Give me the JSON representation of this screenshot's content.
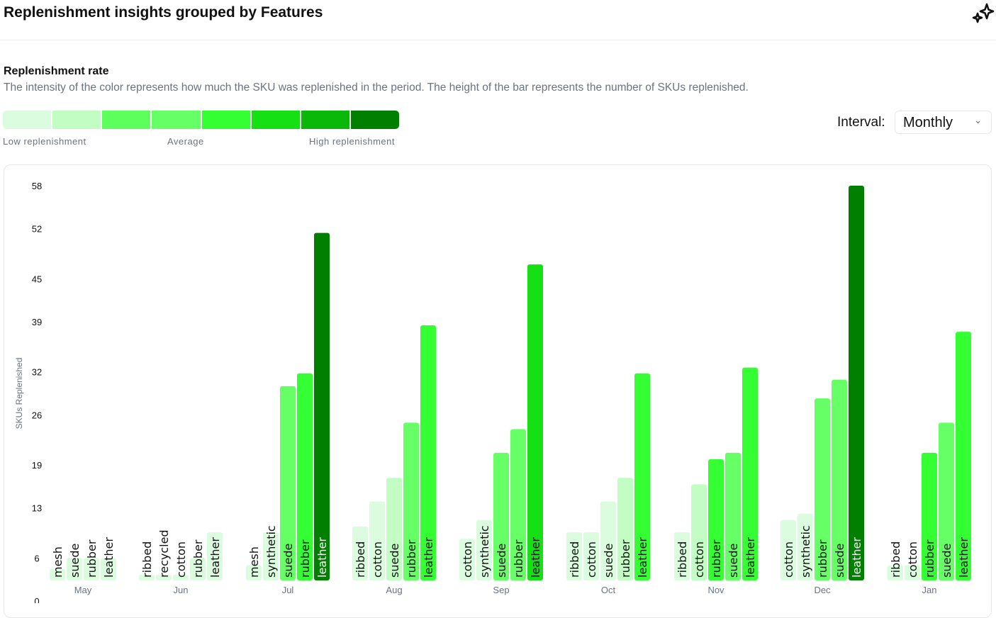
{
  "header": {
    "title": "Replenishment insights grouped by Features",
    "icon": "sparkles-icon"
  },
  "section": {
    "title": "Replenishment rate",
    "description": "The intensity of the color represents how much the SKU was replenished in the period. The height of the bar represents the number of SKUs replenished."
  },
  "legend": {
    "colors": [
      "#dcfcdf",
      "#c2fdc4",
      "#5cff5c",
      "#66ff66",
      "#33ff33",
      "#14e014",
      "#0ab80a",
      "#007f00"
    ],
    "low": "Low replenishment",
    "avg": "Average",
    "high": "High replenishment"
  },
  "interval": {
    "label": "Interval:",
    "value": "Monthly"
  },
  "chart_data": {
    "type": "bar",
    "ylabel": "SKUs Replenished",
    "ylim": [
      0,
      58
    ],
    "yticks": [
      0,
      6,
      13,
      19,
      26,
      32,
      39,
      45,
      52,
      58
    ],
    "groups": [
      {
        "month": "May",
        "bars": [
          {
            "f": "mesh",
            "v": 4.5,
            "c": 0
          },
          {
            "f": "suede",
            "v": 6,
            "c": 0
          },
          {
            "f": "rubber",
            "v": 6,
            "c": 0
          },
          {
            "f": "leather",
            "v": 6,
            "c": 0
          }
        ]
      },
      {
        "month": "Jun",
        "bars": [
          {
            "f": "ribbed",
            "v": 3.7,
            "c": 0
          },
          {
            "f": "recycled",
            "v": 3.7,
            "c": 0
          },
          {
            "f": "cotton",
            "v": 3.7,
            "c": 0
          },
          {
            "f": "rubber",
            "v": 6,
            "c": 0
          },
          {
            "f": "leather",
            "v": 9.6,
            "c": 0
          }
        ]
      },
      {
        "month": "Jul",
        "bars": [
          {
            "f": "mesh",
            "v": 5,
            "c": 0
          },
          {
            "f": "synthetic",
            "v": 9.6,
            "c": 0
          },
          {
            "f": "suede",
            "v": 30,
            "c": 3
          },
          {
            "f": "rubber",
            "v": 31.8,
            "c": 4
          },
          {
            "f": "leather",
            "v": 51.4,
            "c": 7
          }
        ]
      },
      {
        "month": "Aug",
        "bars": [
          {
            "f": "ribbed",
            "v": 10.4,
            "c": 0
          },
          {
            "f": "cotton",
            "v": 13.9,
            "c": 0
          },
          {
            "f": "suede",
            "v": 17.2,
            "c": 1
          },
          {
            "f": "rubber",
            "v": 24.9,
            "c": 3
          },
          {
            "f": "leather",
            "v": 38.5,
            "c": 4
          }
        ]
      },
      {
        "month": "Sep",
        "bars": [
          {
            "f": "cotton",
            "v": 8.7,
            "c": 0
          },
          {
            "f": "synthetic",
            "v": 11.3,
            "c": 0
          },
          {
            "f": "suede",
            "v": 20.7,
            "c": 3
          },
          {
            "f": "rubber",
            "v": 24,
            "c": 3
          },
          {
            "f": "leather",
            "v": 47,
            "c": 5
          }
        ]
      },
      {
        "month": "Oct",
        "bars": [
          {
            "f": "ribbed",
            "v": 9.6,
            "c": 0
          },
          {
            "f": "cotton",
            "v": 9.6,
            "c": 0
          },
          {
            "f": "suede",
            "v": 13.9,
            "c": 0
          },
          {
            "f": "rubber",
            "v": 17.2,
            "c": 1
          },
          {
            "f": "leather",
            "v": 31.8,
            "c": 4
          }
        ]
      },
      {
        "month": "Nov",
        "bars": [
          {
            "f": "ribbed",
            "v": 9.6,
            "c": 0
          },
          {
            "f": "cotton",
            "v": 16.3,
            "c": 1
          },
          {
            "f": "rubber",
            "v": 19.8,
            "c": 4
          },
          {
            "f": "suede",
            "v": 20.7,
            "c": 3
          },
          {
            "f": "leather",
            "v": 32.6,
            "c": 4
          }
        ]
      },
      {
        "month": "Dec",
        "bars": [
          {
            "f": "cotton",
            "v": 11.3,
            "c": 0
          },
          {
            "f": "synthetic",
            "v": 12.2,
            "c": 0
          },
          {
            "f": "rubber",
            "v": 28.3,
            "c": 3
          },
          {
            "f": "suede",
            "v": 30.9,
            "c": 3
          },
          {
            "f": "leather",
            "v": 58,
            "c": 7
          }
        ]
      },
      {
        "month": "Jan",
        "bars": [
          {
            "f": "ribbed",
            "v": 5,
            "c": 0
          },
          {
            "f": "cotton",
            "v": 5,
            "c": 0
          },
          {
            "f": "rubber",
            "v": 20.7,
            "c": 4
          },
          {
            "f": "suede",
            "v": 24.9,
            "c": 3
          },
          {
            "f": "leather",
            "v": 37.6,
            "c": 4
          }
        ]
      }
    ]
  }
}
